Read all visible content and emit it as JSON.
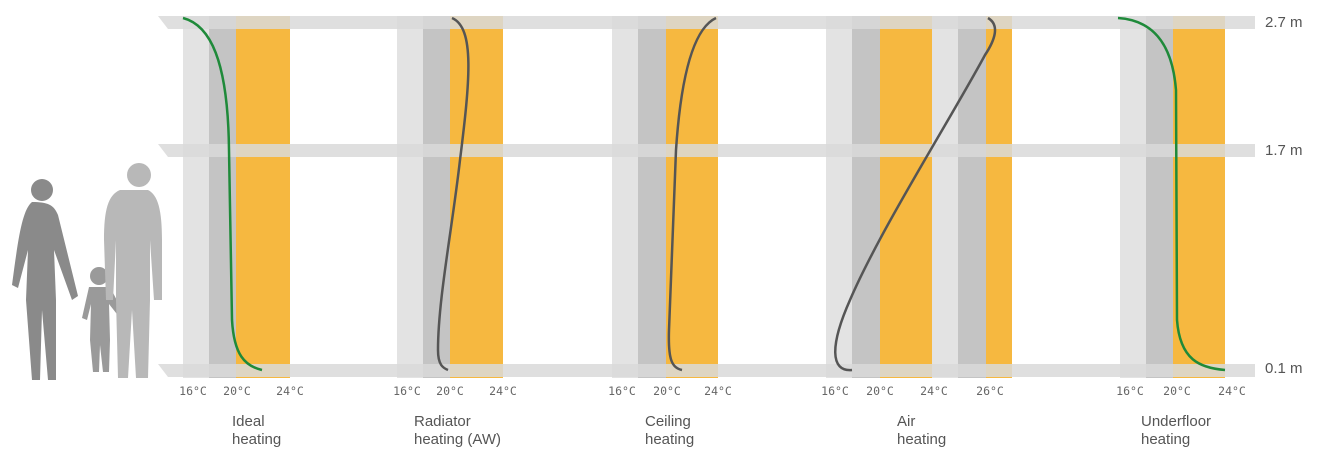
{
  "height_labels": [
    "2.7 m",
    "1.7 m",
    "0.1 m"
  ],
  "panels": [
    {
      "ticks": [
        "16°C",
        "20°C",
        "24°C"
      ],
      "label": [
        "Ideal",
        "heating"
      ]
    },
    {
      "ticks": [
        "16°C",
        "20°C",
        "24°C"
      ],
      "label": [
        "Radiator",
        "heating (AW)"
      ]
    },
    {
      "ticks": [
        "16°C",
        "20°C",
        "24°C"
      ],
      "label": [
        "Ceiling",
        "heating"
      ]
    },
    {
      "ticks": [
        "16°C",
        "20°C",
        "24°C",
        "26°C"
      ],
      "label": [
        "Air",
        "heating"
      ]
    },
    {
      "ticks": [
        "16°C",
        "20°C",
        "24°C"
      ],
      "label": [
        "Underfloor",
        "heating"
      ]
    }
  ]
}
